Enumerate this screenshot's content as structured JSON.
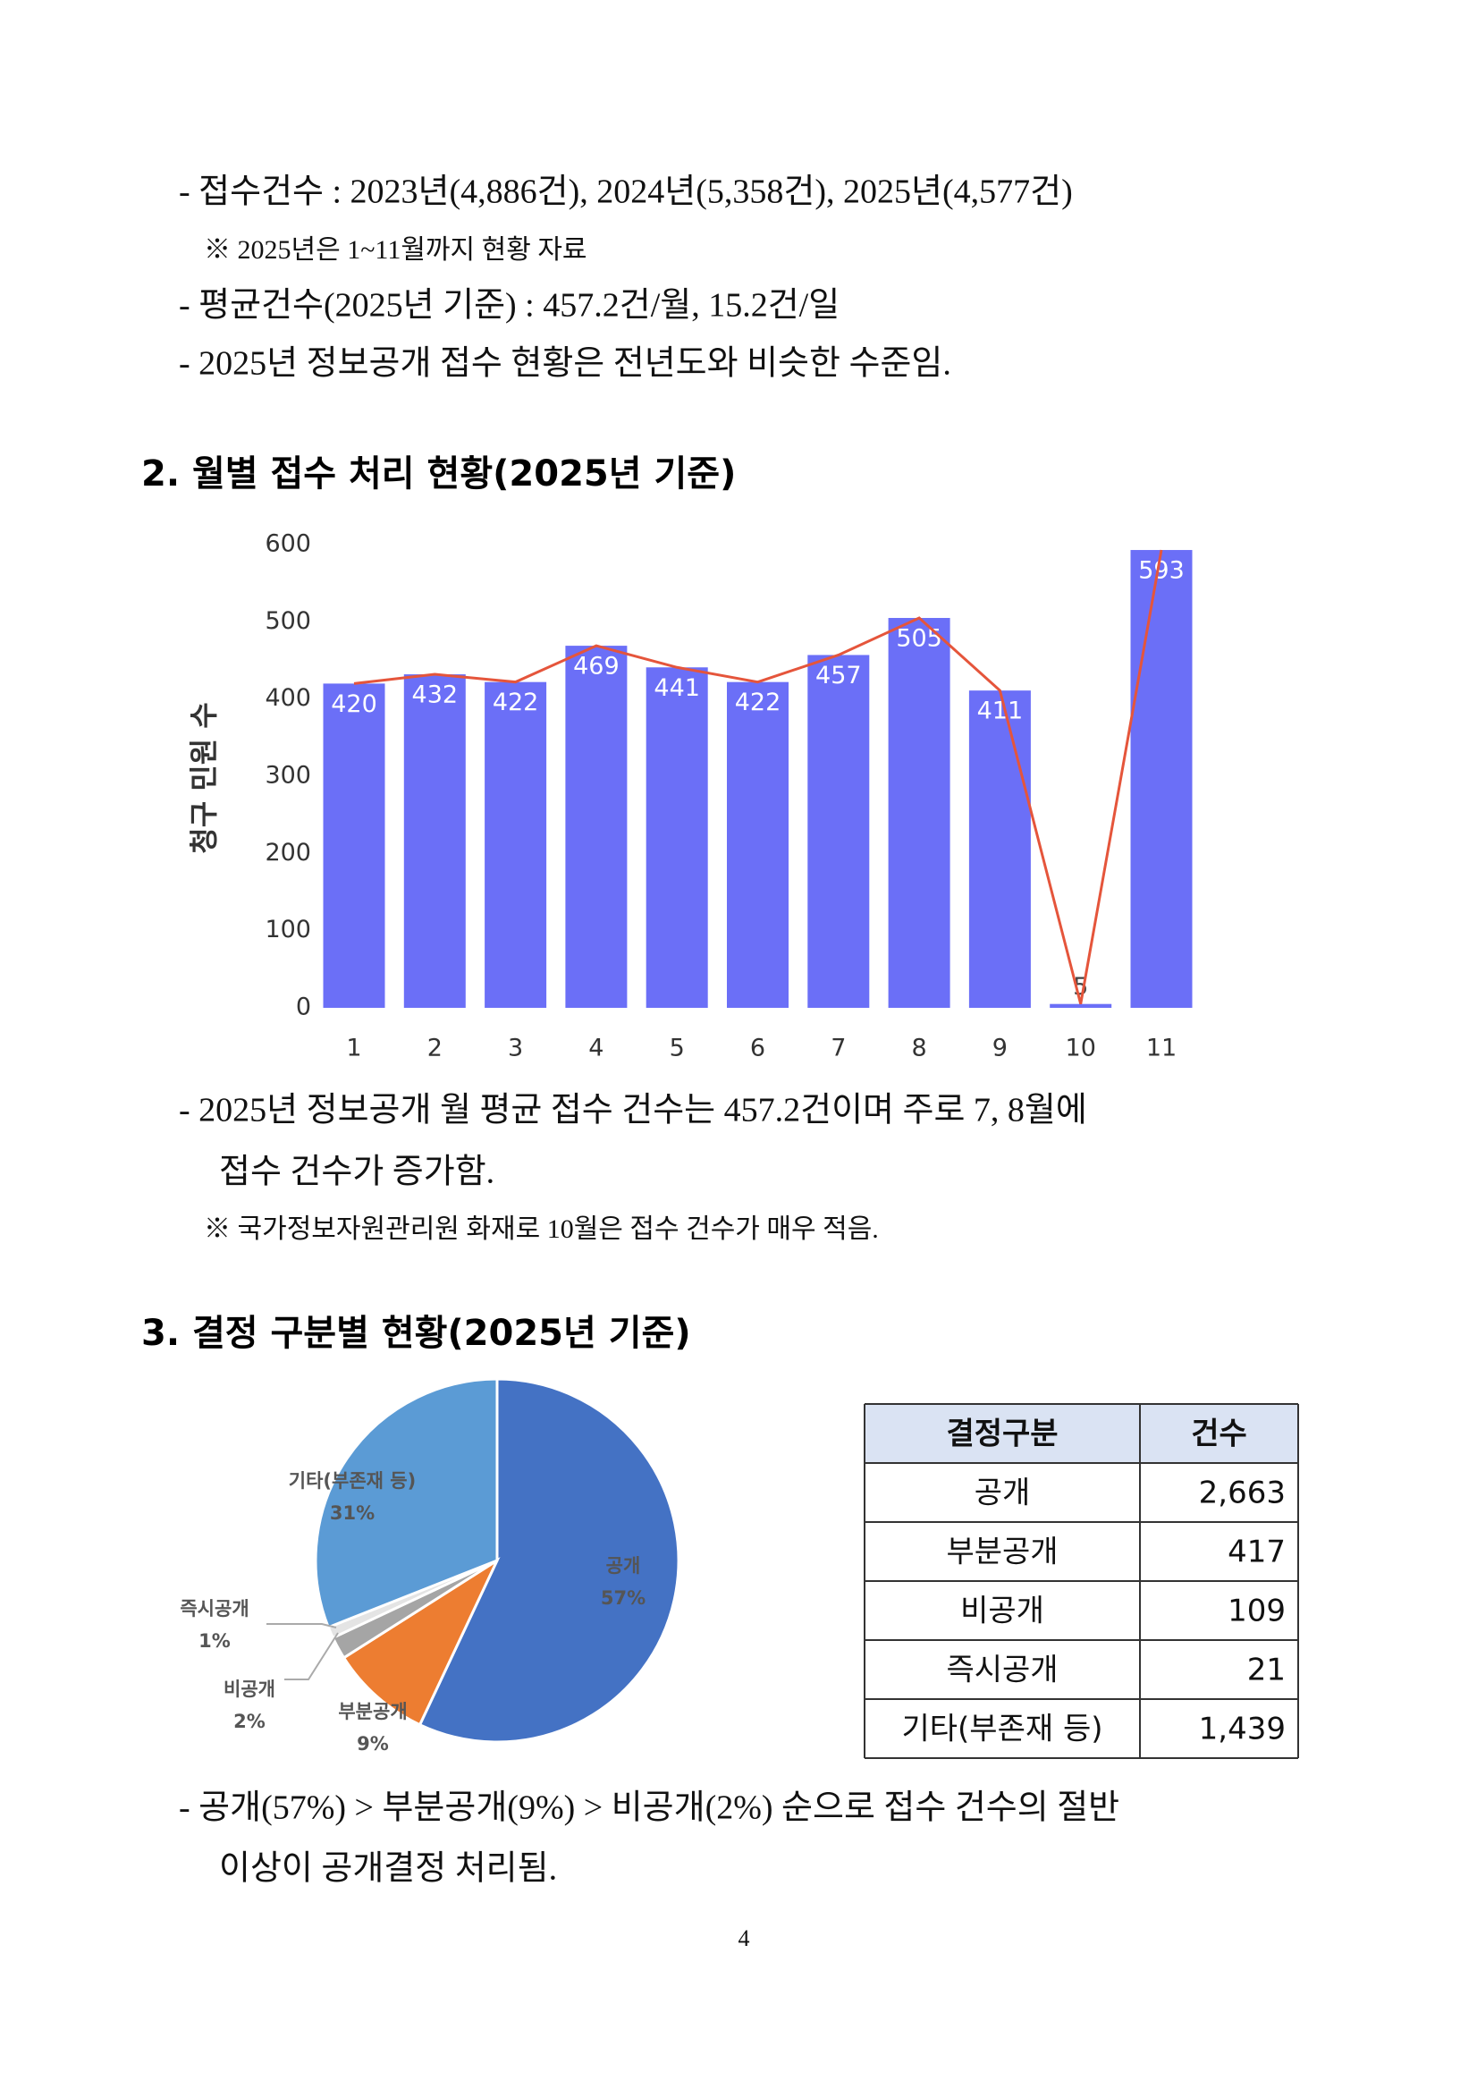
{
  "section1": {
    "lines": [
      "- 접수건수 : 2023년(4,886건), 2024년(5,358건), 2025년(4,577건)",
      "※ 2025년은 1~11월까지 현황 자료",
      "- 평균건수(2025년 기준) : 457.2건/월, 15.2건/일",
      "- 2025년 정보공개 접수 현황은 전년도와 비슷한 수준임."
    ]
  },
  "section2": {
    "heading": "2. 월별 접수 처리 현황(2025년 기준)",
    "notes": [
      "- 2025년 정보공개 월 평균 접수 건수는 457.2건이며 주로 7, 8월에",
      "접수 건수가 증가함.",
      "※ 국가정보자원관리원 화재로 10월은 접수 건수가 매우 적음."
    ]
  },
  "section3": {
    "heading": "3. 결정 구분별 현황(2025년 기준)",
    "notes": [
      "- 공개(57%) > 부분공개(9%) > 비공개(2%) 순으로 접수 건수의 절반",
      "이상이 공개결정 처리됨."
    ]
  },
  "table": {
    "header": [
      "결정구분",
      "건수"
    ],
    "rows": [
      [
        "공개",
        "2,663"
      ],
      [
        "부분공개",
        "417"
      ],
      [
        "비공개",
        "109"
      ],
      [
        "즉시공개",
        "21"
      ],
      [
        "기타(부존재 등)",
        "1,439"
      ]
    ]
  },
  "page_number": "4",
  "chart_data": [
    {
      "type": "bar",
      "ylabel": "청구 민원 수",
      "categories": [
        "1",
        "2",
        "3",
        "4",
        "5",
        "6",
        "7",
        "8",
        "9",
        "10",
        "11"
      ],
      "values": [
        420,
        432,
        422,
        469,
        441,
        422,
        457,
        505,
        411,
        5,
        593
      ],
      "color": "#6b6ff7",
      "trend_line": true,
      "line_color": "#e5553b",
      "ylim": [
        0,
        600
      ],
      "yticks": [
        0,
        100,
        200,
        300,
        400,
        500,
        600
      ],
      "grid": false
    },
    {
      "type": "pie",
      "categories": [
        "공개",
        "부분공개",
        "비공개",
        "즉시공개",
        "기타(부존재 등)"
      ],
      "values": [
        57,
        9,
        2,
        1,
        31
      ],
      "value_labels": [
        "57%",
        "9%",
        "2%",
        "1%",
        "31%"
      ],
      "colors": [
        "#4472c4",
        "#ed7d31",
        "#a5a5a5",
        "#e4e4e4",
        "#5b9bd5"
      ]
    }
  ]
}
